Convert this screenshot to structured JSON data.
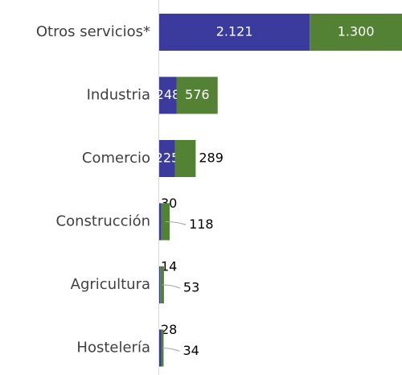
{
  "chart_data": {
    "type": "bar",
    "orientation": "horizontal",
    "stacked": true,
    "categories": [
      "Otros servicios*",
      "Industria",
      "Comercio",
      "Construcción",
      "Agricultura",
      "Hostelería"
    ],
    "series": [
      {
        "color": "#3b3b9e",
        "values": [
          2121,
          248,
          225,
          30,
          14,
          28
        ],
        "value_labels": [
          "2.121",
          "248",
          "225",
          "30",
          "14",
          "28"
        ]
      },
      {
        "color": "#548235",
        "values": [
          1300,
          576,
          289,
          118,
          53,
          34
        ],
        "value_labels": [
          "1.300",
          "576",
          "289",
          "118",
          "53",
          "34"
        ]
      }
    ]
  }
}
